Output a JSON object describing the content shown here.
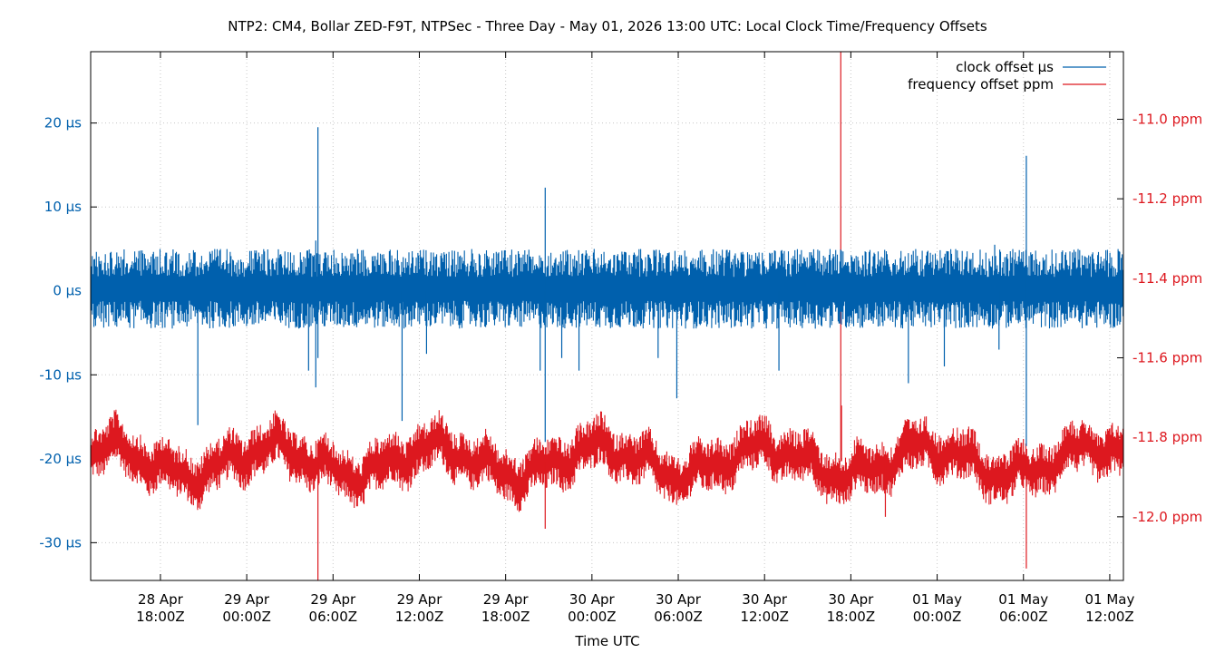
{
  "chart_data": {
    "type": "line",
    "title": "NTP2: CM4, Bollar ZED-F9T, NTPSec - Three Day - May 01, 2026 13:00 UTC: Local Clock Time/Frequency Offsets",
    "xlabel": "Time UTC",
    "ylabel": "",
    "y2label": "",
    "grid": true,
    "legend_position": "top-right",
    "x_ticks": [
      {
        "hours": 18,
        "line1": "28 Apr",
        "line2": "18:00Z"
      },
      {
        "hours": 24,
        "line1": "29 Apr",
        "line2": "00:00Z"
      },
      {
        "hours": 30,
        "line1": "29 Apr",
        "line2": "06:00Z"
      },
      {
        "hours": 36,
        "line1": "29 Apr",
        "line2": "12:00Z"
      },
      {
        "hours": 42,
        "line1": "29 Apr",
        "line2": "18:00Z"
      },
      {
        "hours": 48,
        "line1": "30 Apr",
        "line2": "00:00Z"
      },
      {
        "hours": 54,
        "line1": "30 Apr",
        "line2": "06:00Z"
      },
      {
        "hours": 60,
        "line1": "30 Apr",
        "line2": "12:00Z"
      },
      {
        "hours": 66,
        "line1": "30 Apr",
        "line2": "18:00Z"
      },
      {
        "hours": 72,
        "line1": "01 May",
        "line2": "00:00Z"
      },
      {
        "hours": 78,
        "line1": "01 May",
        "line2": "06:00Z"
      },
      {
        "hours": 84,
        "line1": "01 May",
        "line2": "12:00Z"
      }
    ],
    "x_range_hours": [
      13.15,
      84.95
    ],
    "y_left": {
      "unit": "µs",
      "range": [
        -34.5,
        28.5
      ],
      "ticks": [
        20,
        10,
        0,
        -10,
        -20,
        -30
      ],
      "tick_labels": [
        "20 µs",
        "10 µs",
        "0 µs",
        "-10 µs",
        "-20 µs",
        "-30 µs"
      ],
      "color": "#0060ad"
    },
    "y_right": {
      "unit": "ppm",
      "range": [
        -12.16,
        -10.83
      ],
      "ticks": [
        -11.0,
        -11.2,
        -11.4,
        -11.6,
        -11.8,
        -12.0
      ],
      "tick_labels": [
        "-11.0 ppm",
        "-11.2 ppm",
        "-11.4 ppm",
        "-11.6 ppm",
        "-11.8 ppm",
        "-12.0 ppm"
      ],
      "color": "#dd181f"
    },
    "series": [
      {
        "name": "clock offset µs",
        "axis": "left",
        "color": "#0060ad",
        "band": [
          -4.5,
          5.0
        ],
        "spikes": [
          [
            20.6,
            -16.0
          ],
          [
            28.3,
            -9.5
          ],
          [
            28.8,
            -11.5
          ],
          [
            28.8,
            6.0
          ],
          [
            28.95,
            19.5
          ],
          [
            28.95,
            -8.0
          ],
          [
            34.8,
            -15.5
          ],
          [
            36.5,
            -7.5
          ],
          [
            44.4,
            -9.5
          ],
          [
            44.75,
            12.3
          ],
          [
            44.75,
            -18.0
          ],
          [
            45.9,
            -8.0
          ],
          [
            47.1,
            -9.5
          ],
          [
            52.6,
            -8.0
          ],
          [
            53.9,
            -12.8
          ],
          [
            61.0,
            -9.5
          ],
          [
            72.5,
            -9.0
          ],
          [
            70.0,
            -11.0
          ],
          [
            76.3,
            -7.0
          ],
          [
            78.2,
            16.1
          ],
          [
            78.2,
            -18.5
          ],
          [
            76.0,
            5.5
          ]
        ]
      },
      {
        "name": "frequency offset ppm",
        "axis": "right",
        "color": "#dd181f",
        "band_center": -11.86,
        "band_halfwidth": 0.065,
        "spikes": [
          [
            28.95,
            -12.16
          ],
          [
            44.75,
            -12.03
          ],
          [
            65.3,
            -10.83
          ],
          [
            65.35,
            -11.72
          ],
          [
            78.2,
            -12.13
          ],
          [
            68.4,
            -12.0
          ]
        ]
      }
    ]
  }
}
